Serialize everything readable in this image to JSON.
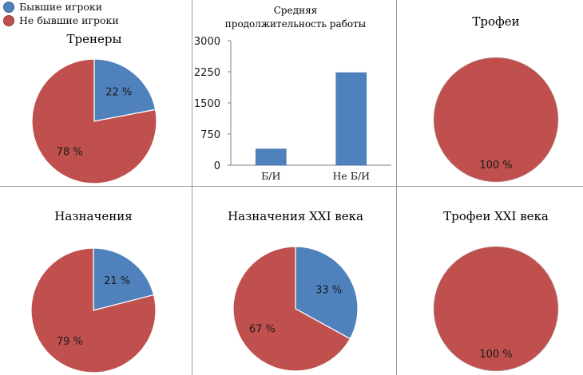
{
  "colors": {
    "former": "#4f81bd",
    "nonformer": "#c0504d",
    "stroke": "#ffffff",
    "axis": "#808080"
  },
  "legend": [
    {
      "label": "Бывшие игроки"
    },
    {
      "label": "Не бывшие игроки"
    }
  ],
  "chart_data": [
    {
      "type": "pie",
      "title": "Тренеры",
      "values": [
        22,
        78
      ],
      "labels": [
        "22 %",
        "78 %"
      ],
      "series": [
        "Бывшие игроки",
        "Не бывшие игроки"
      ]
    },
    {
      "type": "bar",
      "title_line1": "Средняя",
      "title_line2": "продолжительность работы",
      "categories": [
        "Б/И",
        "Не Б/И"
      ],
      "values": [
        390,
        2230
      ],
      "yticks": [
        "0",
        "750",
        "1500",
        "2250",
        "3000"
      ],
      "ylim": [
        0,
        3000
      ]
    },
    {
      "type": "pie",
      "title": "Трофеи",
      "values": [
        0,
        100
      ],
      "labels": [
        "",
        "100 %"
      ],
      "series": [
        "Бывшие игроки",
        "Не бывшие игроки"
      ]
    },
    {
      "type": "pie",
      "title": "Назначения",
      "values": [
        21,
        79
      ],
      "labels": [
        "21 %",
        "79 %"
      ],
      "series": [
        "Бывшие игроки",
        "Не бывшие игроки"
      ]
    },
    {
      "type": "pie",
      "title": "Назначения XXI века",
      "values": [
        33,
        67
      ],
      "labels": [
        "33 %",
        "67 %"
      ],
      "series": [
        "Бывшие игроки",
        "Не бывшие игроки"
      ]
    },
    {
      "type": "pie",
      "title": "Трофеи XXI века",
      "values": [
        0,
        100
      ],
      "labels": [
        "",
        "100 %"
      ],
      "series": [
        "Бывшие игроки",
        "Не бывшие игроки"
      ]
    }
  ]
}
